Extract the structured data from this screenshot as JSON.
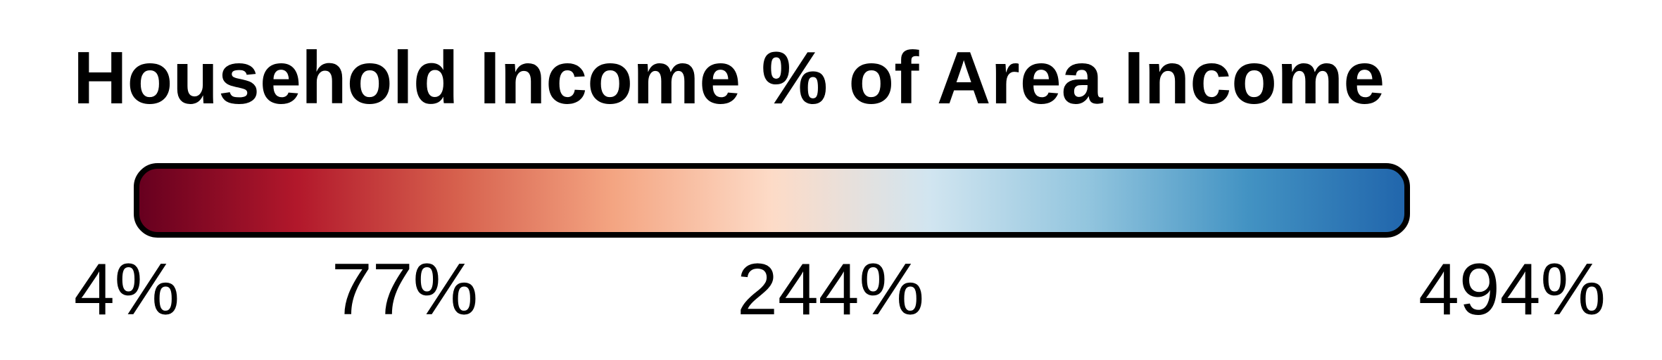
{
  "chart_data": {
    "type": "heatmap",
    "title": "Household Income % of Area Income",
    "colorbar": {
      "min": 4,
      "max": 494,
      "unit": "%",
      "ticks": [
        {
          "value": 4,
          "label": "4%"
        },
        {
          "value": 77,
          "label": "77%"
        },
        {
          "value": 244,
          "label": "244%"
        },
        {
          "value": 494,
          "label": "494%"
        }
      ],
      "colors": [
        "#67001f",
        "#b2182b",
        "#d6604d",
        "#f4a582",
        "#fddbc7",
        "#d1e5f0",
        "#92c5de",
        "#4393c3",
        "#2166ac"
      ]
    }
  }
}
